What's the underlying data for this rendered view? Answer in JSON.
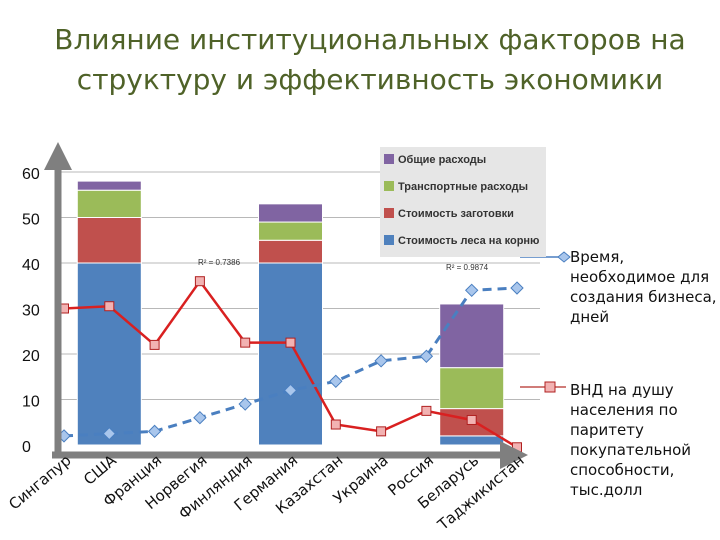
{
  "page": {
    "title_line1": "Влияние институциональных факторов на",
    "title_line2": "структуру и эффективность экономики"
  },
  "annotations": {
    "time_note": "Время, необходимое для создания бизнеса, дней",
    "gni_note": "ВНД на душу населения по паритету покупательной способности, тыс.долл",
    "r2_left": "R² = 0.7386",
    "r2_right": "R² = 0.9874"
  },
  "chart_data": {
    "type": "bar",
    "categories": [
      "Сингапур",
      "США",
      "Франция",
      "Норвегия",
      "Финляндия",
      "Германия",
      "Казахстан",
      "Украина",
      "Россия",
      "Беларусь",
      "Таджикистан"
    ],
    "ylim": [
      0,
      60
    ],
    "yticks": [
      0,
      10,
      20,
      30,
      40,
      50,
      60
    ],
    "grid": true,
    "legend_position": "top-right",
    "stacked_bars": [
      {
        "category": "США",
        "components": [
          40,
          10,
          6,
          2
        ]
      },
      {
        "category": "Германия",
        "components": [
          40,
          5,
          4,
          4
        ]
      },
      {
        "category": "Беларусь",
        "components": [
          2,
          6,
          9,
          14
        ]
      }
    ],
    "stack_series": [
      {
        "name": "Стоимость леса на корню",
        "color": "#4f81bd"
      },
      {
        "name": "Стоимость заготовки",
        "color": "#c0504d"
      },
      {
        "name": "Транспортные расходы",
        "color": "#9bbb59"
      },
      {
        "name": "Общие расходы",
        "color": "#8064a2"
      }
    ],
    "lines": [
      {
        "name": "Время, необходимое для создания бизнеса, дней",
        "color": "#d92020",
        "values": [
          30,
          30.5,
          22,
          36,
          22.5,
          22.5,
          4.5,
          3,
          7.5,
          5.5,
          -0.5
        ]
      },
      {
        "name": "ВНД на душу населения по паритету покупательной способности, тыс.долл",
        "color": "#4a7fc0",
        "trend": "dashed",
        "values": [
          2,
          2.5,
          3,
          6,
          9,
          12,
          14,
          18.5,
          19.5,
          34,
          34.5
        ]
      }
    ]
  }
}
